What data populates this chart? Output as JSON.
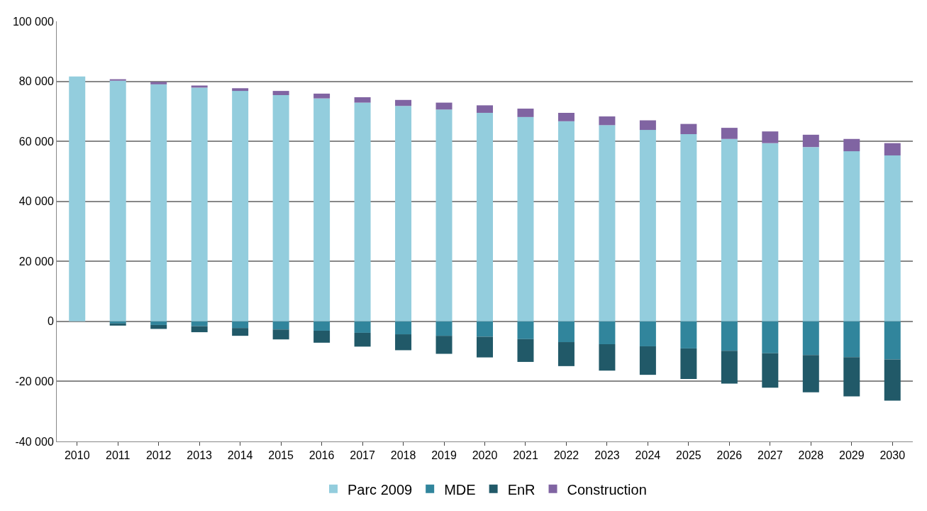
{
  "chart_data": {
    "type": "bar",
    "stacked": true,
    "categories": [
      "2010",
      "2011",
      "2012",
      "2013",
      "2014",
      "2015",
      "2016",
      "2017",
      "2018",
      "2019",
      "2020",
      "2021",
      "2022",
      "2023",
      "2024",
      "2025",
      "2026",
      "2027",
      "2028",
      "2029",
      "2030"
    ],
    "series": [
      {
        "name": "Parc 2009",
        "color": "#93cddd",
        "values": [
          81600,
          80200,
          79000,
          77900,
          76800,
          75400,
          74300,
          72900,
          71800,
          70600,
          69500,
          68100,
          66700,
          65400,
          63800,
          62400,
          60800,
          59400,
          58100,
          56700,
          55300
        ]
      },
      {
        "name": "MDE",
        "color": "#31859c",
        "values": [
          0,
          -700,
          -1200,
          -1600,
          -2200,
          -2700,
          -3100,
          -3800,
          -4300,
          -4800,
          -5100,
          -5900,
          -6900,
          -7600,
          -8300,
          -9000,
          -9800,
          -10600,
          -11200,
          -11900,
          -12700
        ]
      },
      {
        "name": "EnR",
        "color": "#215968",
        "values": [
          0,
          -700,
          -1300,
          -2000,
          -2600,
          -3300,
          -4000,
          -4600,
          -5300,
          -6000,
          -6900,
          -7600,
          -8000,
          -8800,
          -9500,
          -10200,
          -10900,
          -11500,
          -12400,
          -13100,
          -13700
        ]
      },
      {
        "name": "Construction",
        "color": "#8064a2",
        "values": [
          0,
          500,
          800,
          700,
          900,
          1400,
          1600,
          1800,
          2000,
          2300,
          2500,
          2800,
          2800,
          2900,
          3200,
          3400,
          3700,
          3900,
          4100,
          4100,
          4100
        ]
      }
    ],
    "ylim": [
      -40000,
      100000
    ],
    "yticks": [
      {
        "value": -40000,
        "label": "-40 000"
      },
      {
        "value": -20000,
        "label": "-20 000"
      },
      {
        "value": 0,
        "label": "0"
      },
      {
        "value": 20000,
        "label": "20 000"
      },
      {
        "value": 40000,
        "label": "40 000"
      },
      {
        "value": 60000,
        "label": "60 000"
      },
      {
        "value": 80000,
        "label": "80 000"
      },
      {
        "value": 100000,
        "label": "100 000"
      }
    ],
    "grid": "y",
    "legend": "bottom"
  }
}
